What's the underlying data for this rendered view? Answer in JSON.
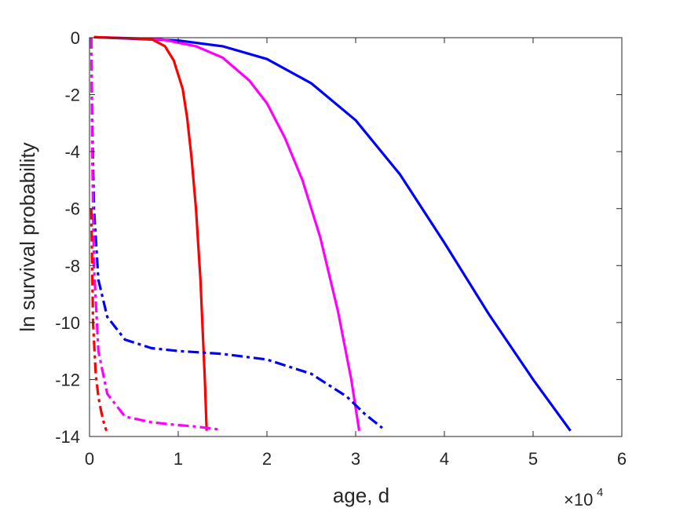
{
  "chart_data": {
    "type": "line",
    "xlabel": "age, d",
    "ylabel": "ln survival probability",
    "x_multiplier": {
      "base": "×10",
      "exponent": "4"
    },
    "xlim": [
      0,
      6
    ],
    "ylim": [
      -14,
      0
    ],
    "xticks": [
      0,
      1,
      2,
      3,
      4,
      5,
      6
    ],
    "yticks": [
      0,
      -2,
      -4,
      -6,
      -8,
      -10,
      -12,
      -14
    ],
    "grid": false,
    "legend": "none",
    "series": [
      {
        "color": "#0000ff",
        "style": "solid",
        "x": [
          0.05,
          1.0,
          1.5,
          2.0,
          2.5,
          3.0,
          3.5,
          4.0,
          4.5,
          5.0,
          5.42
        ],
        "y": [
          0.02,
          -0.1,
          -0.3,
          -0.75,
          -1.6,
          -2.9,
          -4.8,
          -7.2,
          -9.7,
          -12.0,
          -13.8
        ]
      },
      {
        "color": "#ff00ff",
        "style": "solid",
        "x": [
          0.05,
          0.8,
          1.2,
          1.5,
          1.8,
          2.0,
          2.2,
          2.4,
          2.6,
          2.8,
          2.95,
          3.04
        ],
        "y": [
          0.02,
          -0.05,
          -0.3,
          -0.7,
          -1.5,
          -2.3,
          -3.5,
          -5.0,
          -7.0,
          -9.6,
          -12.0,
          -13.8
        ]
      },
      {
        "color": "#ff0000",
        "style": "solid",
        "x": [
          0.05,
          0.7,
          0.85,
          0.95,
          1.05,
          1.1,
          1.15,
          1.2,
          1.25,
          1.3,
          1.32
        ],
        "y": [
          0.02,
          -0.05,
          -0.3,
          -0.8,
          -1.8,
          -2.8,
          -4.2,
          -6.0,
          -8.5,
          -12.0,
          -13.8
        ]
      },
      {
        "color": "#0000ff",
        "style": "dashdot",
        "x": [
          0.02,
          0.03,
          0.05,
          0.1,
          0.2,
          0.4,
          0.7,
          1.0,
          1.5,
          2.0,
          2.5,
          2.9,
          3.1,
          3.3
        ],
        "y": [
          0,
          -3.0,
          -6.0,
          -8.5,
          -9.8,
          -10.6,
          -10.9,
          -11.0,
          -11.1,
          -11.3,
          -11.8,
          -12.6,
          -13.2,
          -13.7
        ]
      },
      {
        "color": "#ff00ff",
        "style": "dashdot",
        "x": [
          0.02,
          0.03,
          0.05,
          0.1,
          0.2,
          0.4,
          0.7,
          1.0,
          1.2,
          1.45
        ],
        "y": [
          0,
          -4.0,
          -8.0,
          -11.0,
          -12.5,
          -13.3,
          -13.5,
          -13.6,
          -13.65,
          -13.75
        ]
      },
      {
        "color": "#ff0000",
        "style": "dashdot",
        "x": [
          0.02,
          0.04,
          0.07,
          0.1,
          0.13,
          0.16,
          0.19
        ],
        "y": [
          -6.0,
          -10.0,
          -11.8,
          -12.6,
          -13.1,
          -13.5,
          -13.8
        ]
      }
    ]
  }
}
